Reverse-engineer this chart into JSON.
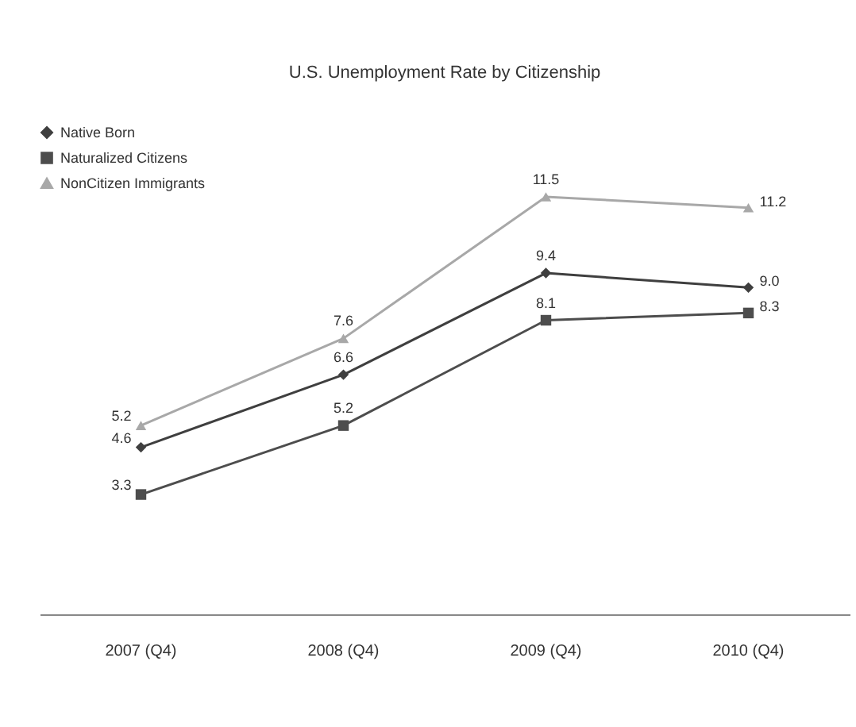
{
  "chart_data": {
    "type": "line",
    "title": "U.S. Unemployment Rate by Citizenship",
    "categories": [
      "2007 (Q4)",
      "2008 (Q4)",
      "2009 (Q4)",
      "2010 (Q4)"
    ],
    "series": [
      {
        "name": "Native Born",
        "color": "#3f3f3f",
        "marker": "diamond",
        "values": [
          4.6,
          6.6,
          9.4,
          9.0
        ],
        "value_labels": [
          "4.6",
          "6.6",
          "9.4",
          "9.0"
        ]
      },
      {
        "name": "Naturalized Citizens",
        "color": "#4d4d4d",
        "marker": "square",
        "values": [
          3.3,
          5.2,
          8.1,
          8.3
        ],
        "value_labels": [
          "3.3",
          "5.2",
          "8.1",
          "8.3"
        ]
      },
      {
        "name": "NonCitizen Immigrants",
        "color": "#a8a8a8",
        "marker": "triangle",
        "values": [
          5.2,
          7.6,
          11.5,
          11.2
        ],
        "value_labels": [
          "5.2",
          "7.6",
          "11.5",
          "11.2"
        ]
      }
    ],
    "legend": "top left",
    "tick_labels": "x",
    "line_style": "solid"
  }
}
